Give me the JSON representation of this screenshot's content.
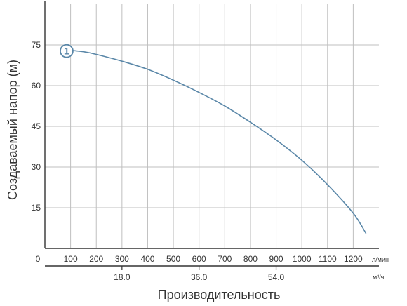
{
  "chart_data": {
    "type": "line",
    "title": "",
    "ylabel": "Создаваемый напор (м)",
    "xlabel": "Производительность",
    "x_unit": "л/мин",
    "x2_unit": "м³/ч",
    "xlim": [
      0,
      1300
    ],
    "ylim": [
      0,
      90
    ],
    "grid": true,
    "x_ticks": [
      0,
      100,
      200,
      300,
      400,
      500,
      600,
      700,
      800,
      900,
      1000,
      1100,
      1200
    ],
    "y_ticks": [
      15,
      30,
      45,
      60,
      75
    ],
    "x2_ticks": [
      {
        "label": "18.0",
        "lpm": 300
      },
      {
        "label": "36.0",
        "lpm": 600
      },
      {
        "label": "54.0",
        "lpm": 900
      }
    ],
    "series": [
      {
        "name": "1",
        "color": "#5a87a8",
        "x": [
          70,
          150,
          200,
          300,
          400,
          500,
          600,
          700,
          800,
          900,
          1000,
          1100,
          1200,
          1250
        ],
        "y": [
          73.3,
          72.5,
          71.5,
          69,
          66,
          62,
          57.5,
          52.5,
          46.5,
          40,
          32.5,
          23.5,
          13,
          5.5
        ]
      }
    ]
  }
}
